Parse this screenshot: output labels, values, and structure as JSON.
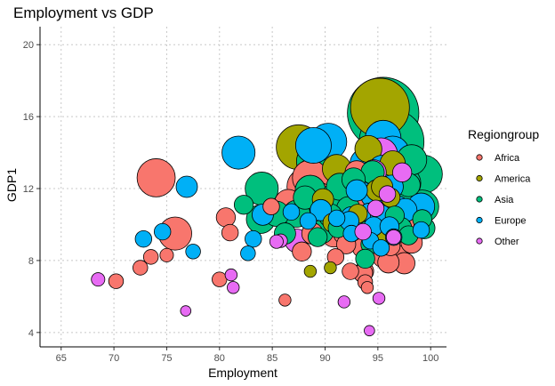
{
  "chart_data": {
    "type": "scatter",
    "title": "Employment vs GDP",
    "xlabel": "Employment",
    "ylabel": "GDP1",
    "xlim": [
      63,
      101.5
    ],
    "ylim": [
      3.2,
      21
    ],
    "xticks": [
      65,
      70,
      75,
      80,
      85,
      90,
      95,
      100
    ],
    "yticks": [
      4,
      8,
      12,
      16,
      20
    ],
    "grid": true,
    "legend": {
      "title": "Regiongroup",
      "position": "right"
    },
    "size_encoding": "bubble area",
    "colors": {
      "Africa": "#F8766D",
      "America": "#A3A500",
      "Asia": "#00BF7D",
      "Europe": "#00B0F6",
      "Other": "#E76BF3"
    },
    "series": [
      {
        "name": "Africa",
        "x": [
          74,
          75.8,
          81,
          80.6,
          84.9,
          86.5,
          88.2,
          88.6,
          89,
          89.4,
          93,
          93.5,
          93.7,
          94,
          95.2,
          95.7,
          96,
          96.5,
          97.6,
          97.5,
          96.6,
          94.5,
          93,
          91.8,
          88.8,
          87.8,
          93.8,
          93.5,
          93.7,
          90.8,
          95.5,
          96.8,
          96.3,
          92,
          91,
          96.2,
          73.5,
          72.5,
          70.2,
          75,
          80,
          86.2,
          92.4,
          93.6,
          93.8,
          94,
          97.5,
          96,
          98.2,
          94.7,
          96.9
        ],
        "y": [
          12.6,
          9.5,
          9.55,
          10.4,
          11,
          11.2,
          12.1,
          12.6,
          11.4,
          11.5,
          12.9,
          11.8,
          11.3,
          10.3,
          10.2,
          10.4,
          10.5,
          10.1,
          10.2,
          9.3,
          9.3,
          9.6,
          9.8,
          9.5,
          9.5,
          8.5,
          9.3,
          8.7,
          7.4,
          9.4,
          8.2,
          8.6,
          9.1,
          8.9,
          8.2,
          8.8,
          8.2,
          7.6,
          6.85,
          8.3,
          6.95,
          5.8,
          7.4,
          7.3,
          6.8,
          6.5,
          7.85,
          7.9,
          9.0,
          11.5,
          12.0
        ],
        "sizes": [
          80,
          60,
          15,
          20,
          15,
          40,
          80,
          70,
          60,
          50,
          30,
          60,
          35,
          40,
          30,
          50,
          35,
          30,
          40,
          30,
          25,
          25,
          40,
          25,
          25,
          20,
          30,
          20,
          20,
          30,
          25,
          30,
          35,
          20,
          15,
          20,
          12,
          12,
          12,
          10,
          12,
          8,
          15,
          20,
          12,
          8,
          25,
          25,
          25,
          30,
          40
        ]
      },
      {
        "name": "America",
        "x": [
          87.5,
          89,
          91.1,
          93.4,
          94.1,
          94.6,
          95.2,
          96.4,
          96.2,
          95.3,
          89.8,
          90.7,
          93.1,
          94.9,
          95.4,
          96.2,
          88.6,
          90.5
        ],
        "y": [
          14.3,
          12.7,
          13.1,
          11.9,
          14.2,
          12.5,
          16.5,
          13.4,
          10.4,
          9.3,
          11.4,
          10.1,
          10.6,
          11.9,
          12.1,
          11.5,
          7.4,
          7.6
        ],
        "sizes": [
          110,
          90,
          45,
          40,
          40,
          35,
          190,
          35,
          25,
          20,
          25,
          20,
          20,
          25,
          25,
          20,
          8,
          8
        ]
      },
      {
        "name": "Asia",
        "x": [
          95.5,
          96.3,
          99.3,
          98.2,
          97.5,
          96,
          95.5,
          97.6,
          99.2,
          89.1,
          88.6,
          91,
          91.4,
          92.2,
          84,
          83.9,
          85.4,
          82.3,
          87.3,
          88.1,
          89.7,
          90.5,
          91.2,
          92.6,
          93.5,
          94.1,
          95,
          95.8,
          96.6,
          97.2,
          97.9,
          99.4,
          99.2,
          96.1,
          94.5,
          92.7,
          97.9,
          95.8,
          94.3,
          93.8,
          86.2,
          89.3
        ],
        "y": [
          16.2,
          14.6,
          12.8,
          13.6,
          12.3,
          12.8,
          11.4,
          11.3,
          11.0,
          13.5,
          11.9,
          11.6,
          12.1,
          10.9,
          12.0,
          10.3,
          10.6,
          11.1,
          10.6,
          11.5,
          9.6,
          10.5,
          9.8,
          9.3,
          10.3,
          9.7,
          10.4,
          10.7,
          10.5,
          9.8,
          9.4,
          9.8,
          10.3,
          12.5,
          12.9,
          12.5,
          12.2,
          10.2,
          8.9,
          8.1,
          9.5,
          9.3
        ],
        "sizes": [
          280,
          230,
          80,
          50,
          60,
          60,
          50,
          40,
          60,
          80,
          50,
          40,
          40,
          30,
          60,
          45,
          35,
          20,
          40,
          30,
          30,
          30,
          20,
          25,
          25,
          20,
          25,
          25,
          20,
          25,
          20,
          25,
          20,
          40,
          30,
          30,
          30,
          25,
          20,
          20,
          25,
          20
        ]
      },
      {
        "name": "Europe",
        "x": [
          88.9,
          90.3,
          95.5,
          96.4,
          93.8,
          94.3,
          95.4,
          96.3,
          81.8,
          76.9,
          91.4,
          93,
          94.5,
          95.7,
          96.8,
          97.6,
          99.1,
          89.6,
          92.5,
          92.3,
          93.6,
          94.2,
          94.6,
          95.3,
          96.1,
          84.1,
          83.2,
          82.7,
          74.6,
          72.8,
          77.5,
          86.8,
          88.4,
          91.1,
          92.5,
          94.3,
          95.3,
          96.5,
          99.1
        ],
        "y": [
          14.4,
          14.6,
          14.8,
          14.0,
          13.4,
          12.6,
          13.1,
          12.1,
          14.0,
          12.1,
          11.3,
          11.9,
          11.6,
          11.1,
          10.9,
          10.8,
          11.0,
          10.8,
          10.4,
          10.2,
          10.1,
          10.6,
          9.9,
          10.5,
          9.9,
          10.55,
          9.2,
          8.4,
          9.6,
          9.2,
          8.5,
          10.7,
          10.2,
          10.35,
          9.5,
          9.1,
          8.7,
          9.3,
          9.7
        ],
        "sizes": [
          70,
          75,
          70,
          60,
          50,
          35,
          40,
          30,
          60,
          25,
          45,
          25,
          30,
          30,
          35,
          30,
          40,
          25,
          25,
          20,
          25,
          25,
          20,
          25,
          20,
          25,
          15,
          12,
          15,
          15,
          12,
          15,
          15,
          15,
          15,
          15,
          15,
          15,
          15
        ]
      },
      {
        "name": "Other",
        "x": [
          95.3,
          94.6,
          87.3,
          85.8,
          85.4,
          81.1,
          81.3,
          68.5,
          76.8,
          91.8,
          94.2,
          95.1,
          96.5,
          93.6,
          94.8,
          95.9,
          97.3
        ],
        "y": [
          13.9,
          12.9,
          9.1,
          9.1,
          9.05,
          7.2,
          6.5,
          6.95,
          5.2,
          5.7,
          4.1,
          5.9,
          9.3,
          9.6,
          10.9,
          11.7,
          12.9
        ],
        "sizes": [
          60,
          35,
          30,
          10,
          10,
          8,
          8,
          10,
          6,
          8,
          6,
          8,
          12,
          15,
          15,
          15,
          20
        ]
      }
    ]
  }
}
